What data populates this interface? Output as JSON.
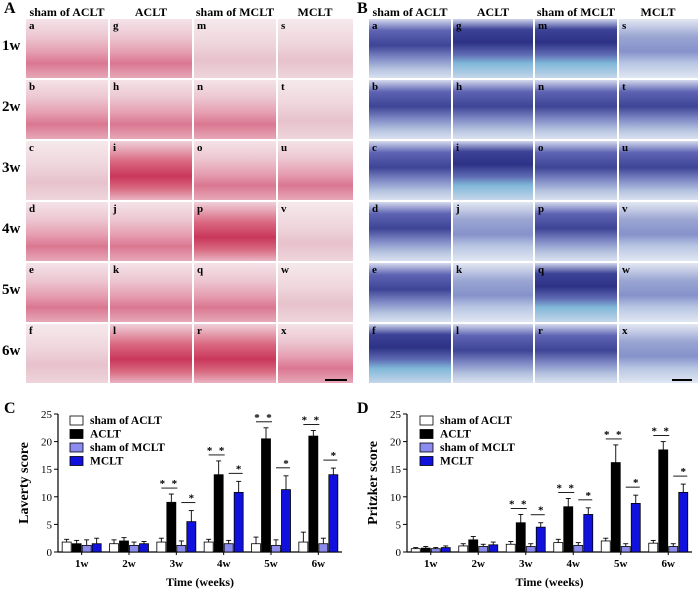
{
  "panels": {
    "A": "A",
    "B": "B",
    "C": "C",
    "D": "D"
  },
  "column_headers": [
    "sham of ACLT",
    "ACLT",
    "sham of MCLT",
    "MCLT"
  ],
  "row_labels": [
    "1w",
    "2w",
    "3w",
    "4w",
    "5w",
    "6w"
  ],
  "tile_letters": {
    "col1": [
      "a",
      "b",
      "c",
      "d",
      "e",
      "f"
    ],
    "col2": [
      "g",
      "h",
      "i",
      "j",
      "k",
      "l"
    ],
    "col3": [
      "m",
      "n",
      "o",
      "p",
      "q",
      "r"
    ],
    "col4": [
      "s",
      "t",
      "u",
      "v",
      "w",
      "x"
    ]
  },
  "colors": {
    "sham_aclt": "#ffffff",
    "aclt": "#000000",
    "sham_mclt": "#8c8cef",
    "mclt": "#1111dd"
  },
  "chart_data": [
    {
      "type": "bar",
      "panel": "C",
      "ylabel": "Laverty score",
      "xlabel": "Time (weeks)",
      "ylim": [
        0,
        25
      ],
      "yticks": [
        "0",
        "5",
        "10",
        "15",
        "20",
        "25"
      ],
      "categories": [
        "1w",
        "2w",
        "3w",
        "4w",
        "5w",
        "6w"
      ],
      "series": [
        {
          "name": "sham of ACLT",
          "values": [
            1.8,
            1.5,
            1.8,
            1.8,
            1.5,
            1.8
          ],
          "errors": [
            0.5,
            0.7,
            0.7,
            0.5,
            1.2,
            1.8
          ]
        },
        {
          "name": "ACLT",
          "values": [
            1.5,
            2.0,
            9.0,
            14.0,
            20.5,
            21.0
          ],
          "errors": [
            0.6,
            0.6,
            1.5,
            2.5,
            2.0,
            1.0
          ]
        },
        {
          "name": "sham of MCLT",
          "values": [
            1.2,
            1.2,
            1.2,
            1.5,
            1.2,
            1.5
          ],
          "errors": [
            1.0,
            0.6,
            0.8,
            0.6,
            1.0,
            1.0
          ]
        },
        {
          "name": "MCLT",
          "values": [
            1.5,
            1.5,
            5.5,
            10.8,
            11.3,
            14.0
          ],
          "errors": [
            1.0,
            0.4,
            2.0,
            2.0,
            2.5,
            1.2
          ]
        }
      ],
      "significance": [
        "*",
        "*",
        "*",
        "*",
        "*",
        "*",
        "*",
        "*",
        "*",
        "*",
        "*",
        "*"
      ]
    },
    {
      "type": "bar",
      "panel": "D",
      "ylabel": "Pritzker score",
      "xlabel": "Time (weeks)",
      "ylim": [
        0,
        25
      ],
      "yticks": [
        "0",
        "5",
        "10",
        "15",
        "20",
        "25"
      ],
      "categories": [
        "1w",
        "2w",
        "3w",
        "4w",
        "5w",
        "6w"
      ],
      "series": [
        {
          "name": "sham of ACLT",
          "values": [
            0.6,
            1.1,
            1.4,
            1.7,
            2.0,
            1.6
          ],
          "errors": [
            0.2,
            0.4,
            0.5,
            0.6,
            0.5,
            0.5
          ]
        },
        {
          "name": "ACLT",
          "values": [
            0.7,
            2.2,
            5.3,
            8.2,
            16.2,
            18.5
          ],
          "errors": [
            0.3,
            0.6,
            1.5,
            1.5,
            3.2,
            1.5
          ]
        },
        {
          "name": "sham of MCLT",
          "values": [
            0.6,
            1.0,
            1.0,
            1.2,
            1.0,
            1.0
          ],
          "errors": [
            0.2,
            0.4,
            0.5,
            0.5,
            0.5,
            0.5
          ]
        },
        {
          "name": "MCLT",
          "values": [
            0.8,
            1.3,
            4.5,
            6.8,
            8.8,
            10.8
          ],
          "errors": [
            0.3,
            0.5,
            0.8,
            1.2,
            1.5,
            1.5
          ]
        }
      ],
      "significance": [
        "*",
        "*",
        "*",
        "*",
        "*",
        "*",
        "*",
        "*",
        "*",
        "*",
        "*",
        "*"
      ]
    }
  ]
}
